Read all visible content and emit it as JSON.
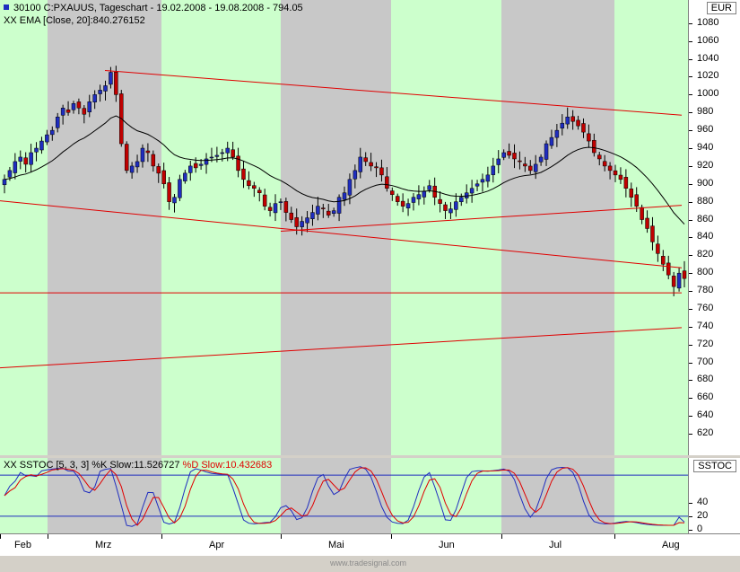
{
  "header": {
    "symbol": "30100",
    "legend_main": "30100  C:PXAUUS, Tageschart - 19.02.2008 - 19.08.2008 - 794.05",
    "legend_ema": "XX EMA [Close, 20]:840.276152",
    "legend_stoch_k": "XX SSTOC [5, 3, 3] %K Slow:11.526727",
    "legend_stoch_d": "%D Slow:10.432683",
    "currency": "EUR",
    "stoch_name": "SSTOC"
  },
  "footer": {
    "watermark": "www.tradesignal.com"
  },
  "colors": {
    "band_green": "#ccffcc",
    "band_grey": "#c8c8c8",
    "trendline": "#e00000",
    "ema": "#000000",
    "candle_up": "#1f2dbf",
    "candle_down": "#c00000",
    "stoch_k": "#1f2dbf",
    "stoch_d": "#e00000"
  },
  "chart_data": [
    {
      "type": "candlestick",
      "title": "30100 C:PXAUUS, Tageschart - 19.02.2008 - 19.08.2008 - 794.05",
      "ylabel": "EUR",
      "ylim": [
        596,
        1106
      ],
      "yticks": [
        1080,
        1060,
        1040,
        1020,
        1000,
        980,
        960,
        940,
        920,
        900,
        880,
        860,
        840,
        820,
        800,
        780,
        760,
        740,
        720,
        700,
        680,
        660,
        640,
        620
      ],
      "months": [
        "Feb",
        "Mrz",
        "Apr",
        "Mai",
        "Jun",
        "Jul",
        "Aug"
      ],
      "band_colors": [
        "green",
        "grey",
        "green",
        "grey",
        "green",
        "grey",
        "green",
        "grey"
      ],
      "ohlc_close": [
        905,
        915,
        925,
        930,
        922,
        935,
        940,
        948,
        955,
        960,
        975,
        985,
        980,
        990,
        985,
        978,
        992,
        1000,
        1005,
        1010,
        1025,
        1000,
        945,
        915,
        920,
        925,
        940,
        935,
        920,
        912,
        900,
        880,
        885,
        905,
        912,
        920,
        918,
        922,
        928,
        930,
        932,
        935,
        940,
        930,
        915,
        905,
        898,
        895,
        890,
        875,
        870,
        878,
        880,
        868,
        860,
        852,
        858,
        862,
        868,
        875,
        872,
        865,
        870,
        885,
        890,
        905,
        915,
        930,
        925,
        920,
        918,
        910,
        895,
        888,
        880,
        875,
        878,
        885,
        888,
        892,
        898,
        885,
        878,
        870,
        872,
        880,
        885,
        890,
        895,
        900,
        905,
        910,
        920,
        928,
        935,
        932,
        928,
        925,
        920,
        915,
        922,
        930,
        945,
        952,
        960,
        968,
        975,
        970,
        965,
        958,
        948,
        935,
        928,
        920,
        915,
        910,
        905,
        895,
        885,
        875,
        860,
        850,
        835,
        822,
        810,
        798,
        785,
        800,
        794
      ],
      "ema_period": 20,
      "trendlines": [
        {
          "from": [
            "Mrz start",
            1027
          ],
          "to": [
            "Aug end",
            977
          ]
        },
        {
          "from": [
            "Feb start",
            881
          ],
          "to": [
            "Aug end",
            806
          ]
        },
        {
          "from": [
            "Mai start",
            847
          ],
          "to": [
            "Aug end",
            876
          ]
        },
        {
          "from": [
            "Feb start",
            778
          ],
          "to": [
            "Aug end",
            778
          ]
        },
        {
          "from": [
            "Feb start",
            694
          ],
          "to": [
            "Aug end",
            739
          ]
        }
      ]
    },
    {
      "type": "line",
      "title": "XX SSTOC [5, 3, 3] %K Slow:11.526727 %D Slow:10.432683",
      "ylim": [
        -5,
        105
      ],
      "yticks": [
        40,
        20,
        0
      ],
      "reference_lines": [
        80,
        20
      ],
      "series": [
        {
          "name": "%K Slow",
          "last": 11.526727
        },
        {
          "name": "%D Slow",
          "last": 10.432683
        }
      ]
    }
  ]
}
